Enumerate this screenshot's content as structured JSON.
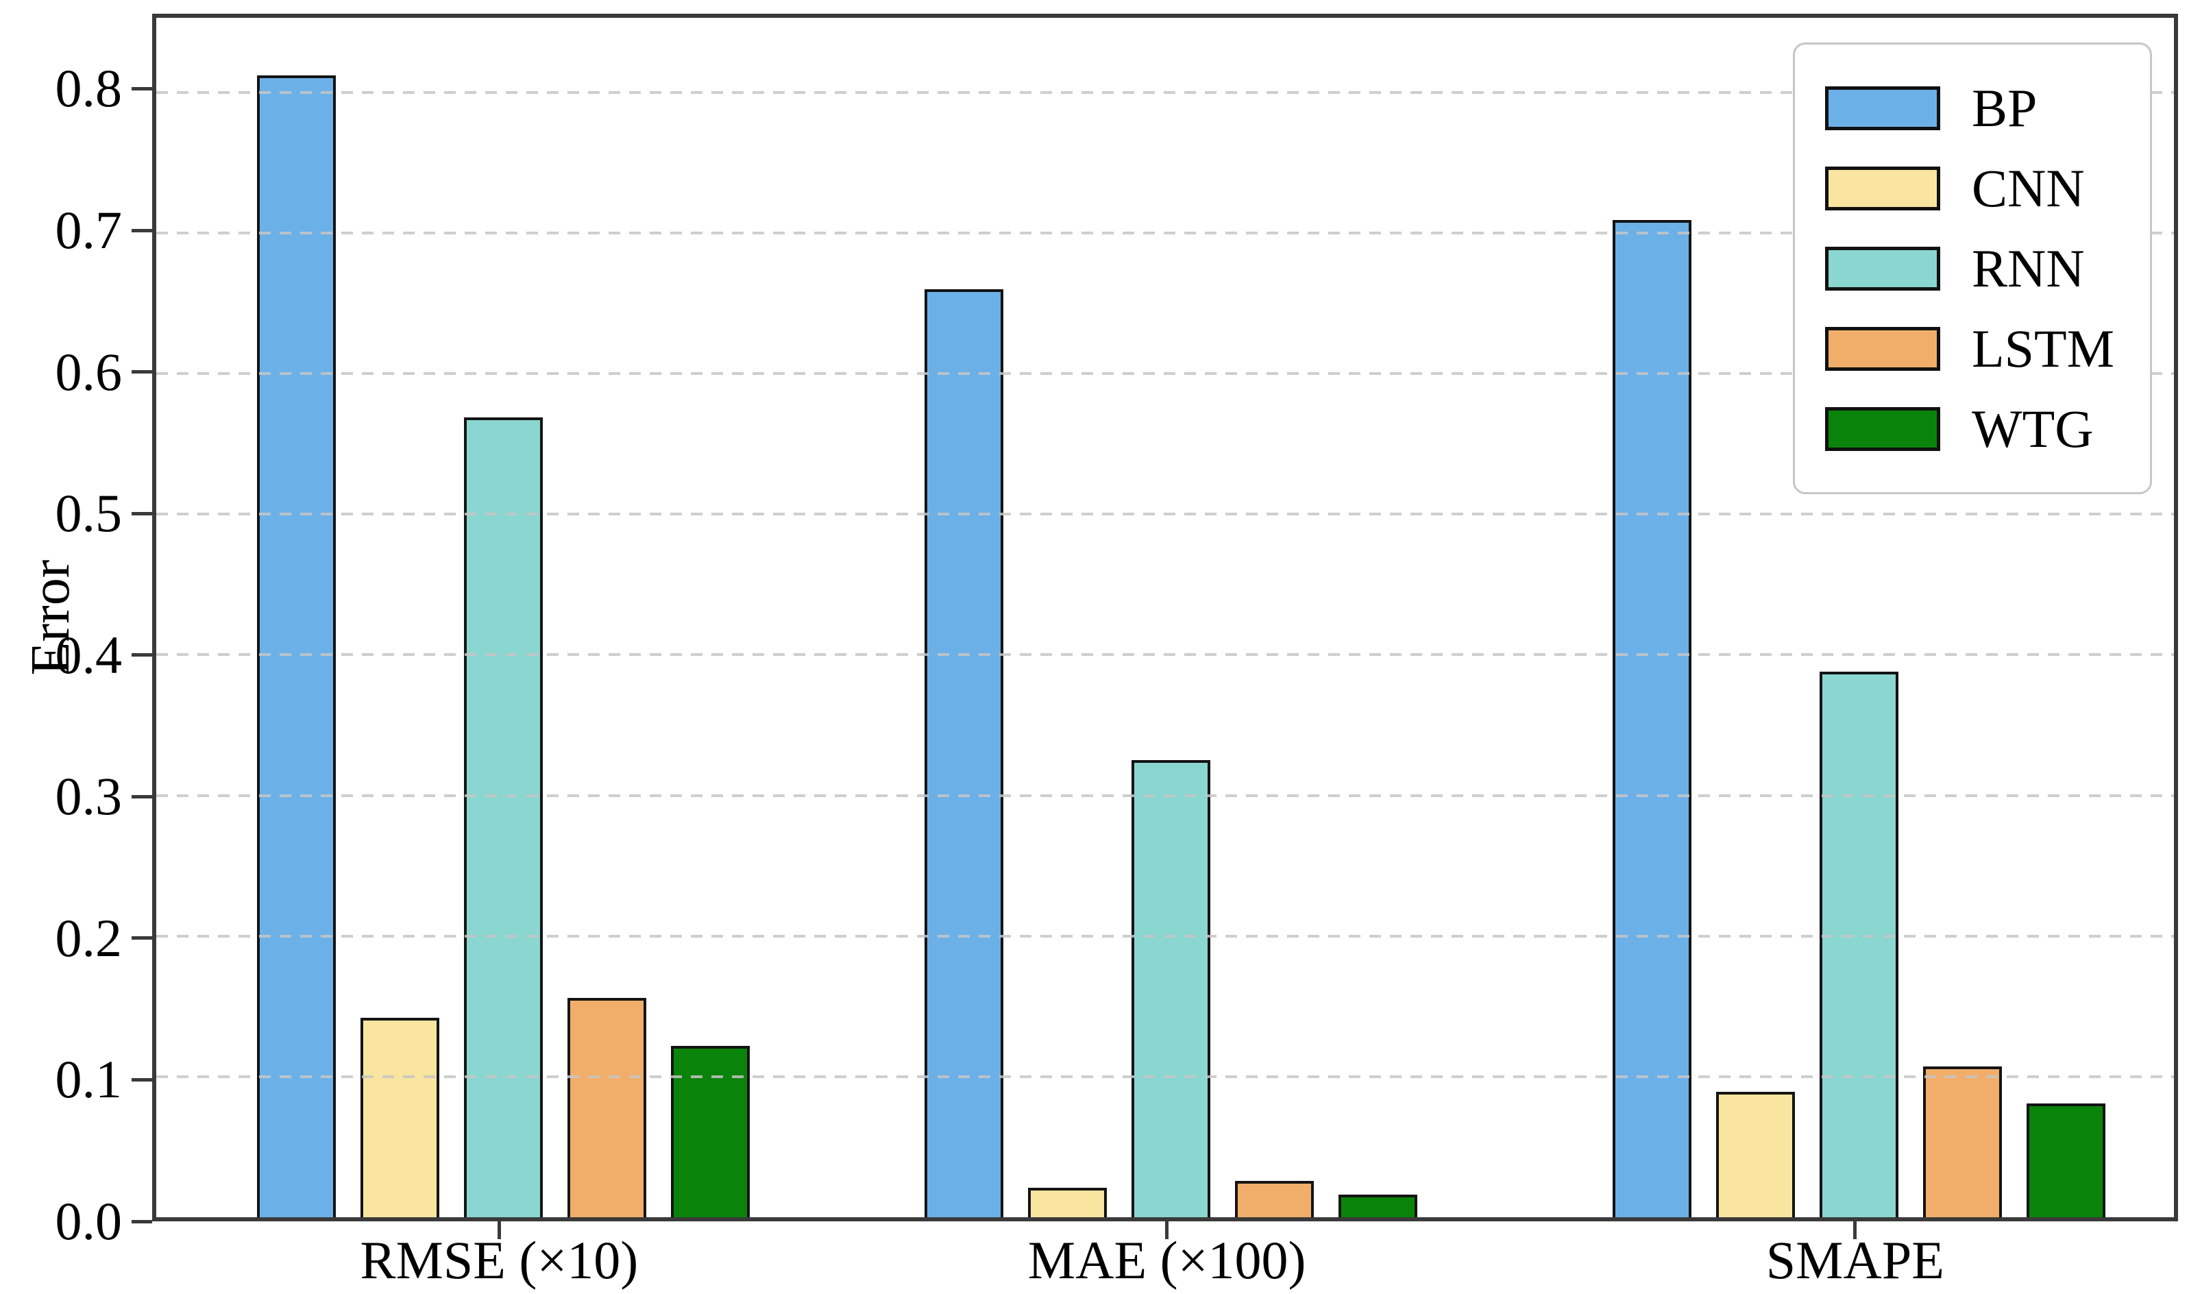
{
  "chart_data": {
    "type": "bar",
    "title": "",
    "ylabel": "Error",
    "xlabel": "",
    "categories": [
      "RMSE (×10)",
      "MAE (×100)",
      "SMAPE"
    ],
    "series": [
      {
        "name": "BP",
        "color": "#6CB0E8",
        "values": [
          0.812,
          0.66,
          0.709
        ]
      },
      {
        "name": "CNN",
        "color": "#F9E5A0",
        "values": [
          0.142,
          0.021,
          0.089
        ]
      },
      {
        "name": "RNN",
        "color": "#8AD6D0",
        "values": [
          0.569,
          0.325,
          0.388
        ]
      },
      {
        "name": "LSTM",
        "color": "#F0AE6A",
        "values": [
          0.156,
          0.026,
          0.107
        ]
      },
      {
        "name": "WTG",
        "color": "#0A830A",
        "values": [
          0.122,
          0.016,
          0.081
        ]
      }
    ],
    "ylim": [
      0,
      0.853
    ],
    "yticks": [
      0.0,
      0.1,
      0.2,
      0.3,
      0.4,
      0.5,
      0.6,
      0.7,
      0.8
    ],
    "ytick_labels": [
      "0.0",
      "0.1",
      "0.2",
      "0.3",
      "0.4",
      "0.5",
      "0.6",
      "0.7",
      "0.8"
    ],
    "grid": {
      "axis": "y",
      "style": "dashed",
      "color": "#c9c9c9",
      "on_top_of_bars": true
    },
    "legend": {
      "position": "upper right",
      "labels": [
        "BP",
        "CNN",
        "RNN",
        "LSTM",
        "WTG"
      ]
    },
    "style": {
      "bar_edge_color": "#141414",
      "spine_color": "#3a3a3a",
      "background": "#ffffff",
      "text_color": "#000000"
    }
  }
}
